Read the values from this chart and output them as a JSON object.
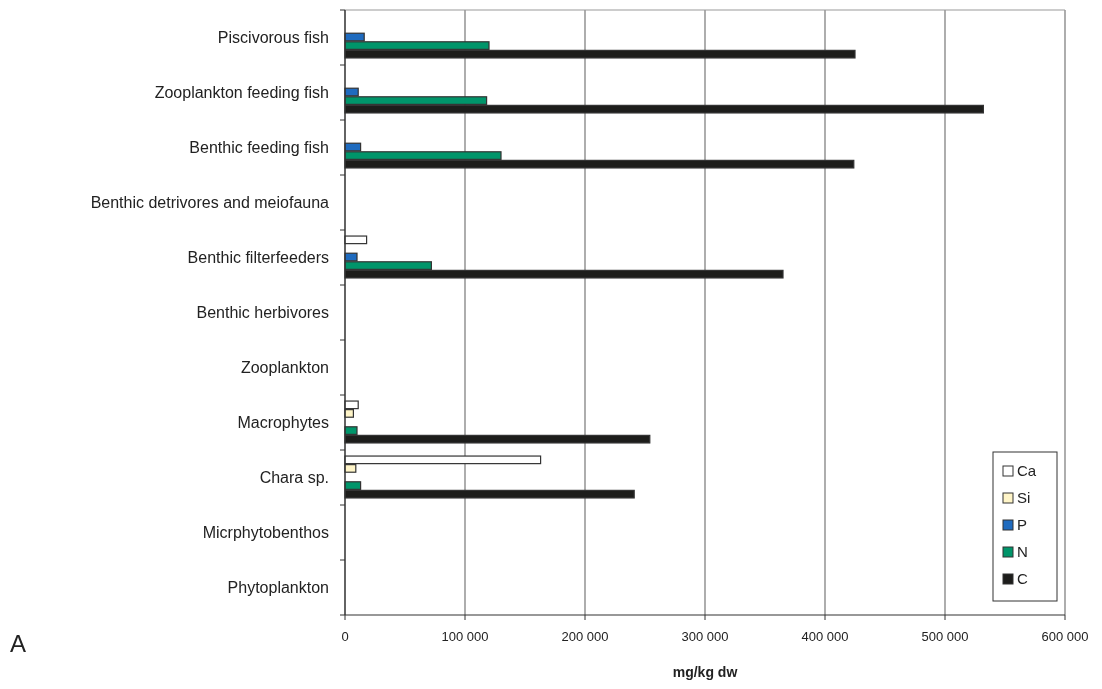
{
  "chart_data": {
    "type": "bar",
    "orientation": "horizontal",
    "xlabel": "mg/kg dw",
    "annotations": [
      "A"
    ],
    "categories": [
      "Piscivorous fish",
      "Zooplankton feeding fish",
      "Benthic feeding fish",
      "Benthic detrivores and meiofauna",
      "Benthic filterfeeders",
      "Benthic herbivores",
      "Zooplankton",
      "Macrophytes",
      "Chara sp.",
      "Micrphytobenthos",
      "Phytoplankton"
    ],
    "series": [
      {
        "name": "Ca",
        "color": "#ffffff",
        "values": [
          null,
          null,
          null,
          null,
          18000,
          null,
          null,
          11000,
          163000,
          null,
          null
        ]
      },
      {
        "name": "Si",
        "color": "#fff5c8",
        "values": [
          null,
          null,
          null,
          null,
          null,
          null,
          null,
          7000,
          9000,
          null,
          null
        ]
      },
      {
        "name": "P",
        "color": "#1f6bbf",
        "values": [
          16000,
          11000,
          13000,
          null,
          10000,
          null,
          null,
          null,
          null,
          null,
          null
        ]
      },
      {
        "name": "N",
        "color": "#00956a",
        "values": [
          120000,
          118000,
          130000,
          null,
          72000,
          null,
          null,
          10000,
          13000,
          null,
          null
        ]
      },
      {
        "name": "C",
        "color": "#1d1d1b",
        "values": [
          425000,
          532000,
          424000,
          null,
          365000,
          null,
          null,
          254000,
          241000,
          null,
          null
        ]
      }
    ],
    "xlim": [
      0,
      600000
    ],
    "xticks": [
      0,
      {
        "value": 100000,
        "label": "100 000"
      },
      {
        "value": 200000,
        "label": "200 000"
      },
      {
        "value": 300000,
        "label": "300 000"
      },
      {
        "value": 400000,
        "label": "400 000"
      },
      {
        "value": 500000,
        "label": "500 000"
      },
      {
        "value": 600000,
        "label": "600 000"
      }
    ],
    "grid": "x",
    "legend": "bottom right"
  }
}
